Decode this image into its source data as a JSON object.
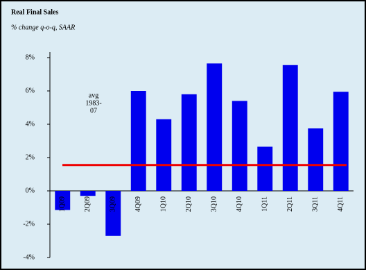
{
  "chart_data": {
    "type": "bar",
    "title": "Real Final Sales",
    "subtitle": "% change q-o-q, SAAR",
    "categories": [
      "1Q09",
      "2Q09",
      "3Q09",
      "4Q09",
      "1Q10",
      "2Q10",
      "3Q10",
      "4Q10",
      "1Q11",
      "2Q11",
      "3Q11",
      "4Q11"
    ],
    "values": [
      -1.15,
      -0.3,
      -2.7,
      6.0,
      4.3,
      5.8,
      7.65,
      5.4,
      2.65,
      7.55,
      3.75,
      5.95
    ],
    "color": "#0000ee",
    "reference_line": {
      "value": 1.55,
      "color": "#ee0000"
    },
    "annotation": [
      "avg",
      "1983-",
      "07"
    ],
    "ylim": [
      -4,
      8
    ],
    "yticks": [
      {
        "value": -4,
        "label": "-4%"
      },
      {
        "value": -2,
        "label": "-2%"
      },
      {
        "value": 0,
        "label": "0%"
      },
      {
        "value": 2,
        "label": "2%"
      },
      {
        "value": 4,
        "label": "4%"
      },
      {
        "value": 6,
        "label": "6%"
      },
      {
        "value": 8,
        "label": "8%"
      }
    ]
  }
}
